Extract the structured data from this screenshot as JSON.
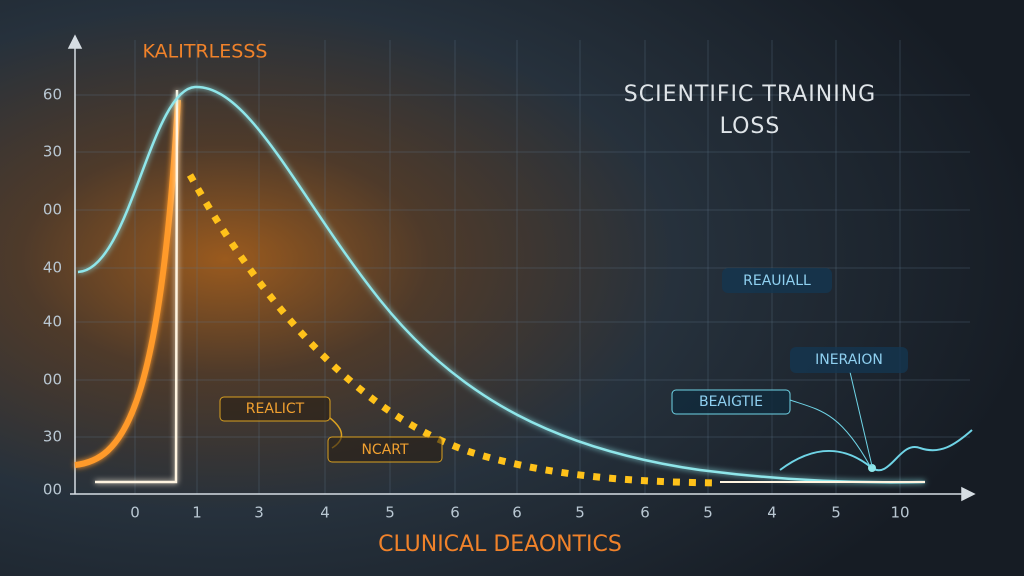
{
  "header": {
    "title_line1": "SCIENTIFIC TRAINING",
    "title_line2": "LOSS",
    "top_label": "KALITRLESSS"
  },
  "y_axis_labels": [
    "60",
    "30",
    "00",
    "40",
    "40",
    "00",
    "30",
    "00"
  ],
  "x_axis_labels": [
    "0",
    "1",
    "3",
    "4",
    "5",
    "6",
    "6",
    "5",
    "6",
    "5",
    "4",
    "5",
    "10"
  ],
  "x_axis_title": "CLUNICAL DEAONTICS",
  "annotations": {
    "realict": "REALICT",
    "ncart": "NCART",
    "reauiall": "REAUIALL",
    "ineraion": "INERAION",
    "beaigtie": "BEAIGTIE"
  }
}
